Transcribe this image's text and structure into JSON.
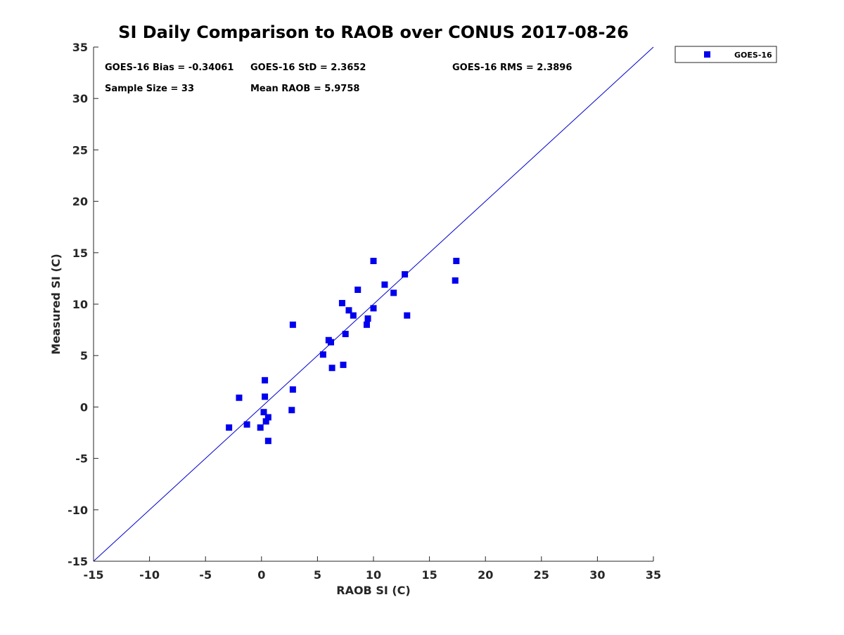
{
  "chart_data": {
    "type": "scatter",
    "title": "SI Daily Comparison to RAOB over CONUS 2017-08-26",
    "xlabel": "RAOB SI (C)",
    "ylabel": "Measured SI (C)",
    "xlim": [
      -15,
      35
    ],
    "ylim": [
      -15,
      35
    ],
    "x_ticks": [
      "-15",
      "-10",
      "-5",
      "0",
      "5",
      "10",
      "15",
      "20",
      "25",
      "30",
      "35"
    ],
    "y_ticks": [
      "-15",
      "-10",
      "-5",
      "0",
      "5",
      "10",
      "15",
      "20",
      "25",
      "30",
      "35"
    ],
    "grid": false,
    "legend_position": "outside top-right",
    "reference_line": {
      "type": "one-to-one",
      "color": "#0000cc"
    },
    "series": [
      {
        "name": "GOES-16",
        "color": "#0000ee",
        "marker": "square",
        "points": [
          [
            -2.9,
            -2.0
          ],
          [
            -2.0,
            0.9
          ],
          [
            -1.3,
            -1.7
          ],
          [
            -0.1,
            -2.0
          ],
          [
            0.2,
            -0.5
          ],
          [
            0.3,
            1.0
          ],
          [
            0.3,
            2.6
          ],
          [
            0.4,
            -1.4
          ],
          [
            0.6,
            -1.0
          ],
          [
            0.6,
            -3.3
          ],
          [
            2.7,
            -0.3
          ],
          [
            2.8,
            1.7
          ],
          [
            2.8,
            8.0
          ],
          [
            5.5,
            5.1
          ],
          [
            6.0,
            6.5
          ],
          [
            6.2,
            6.3
          ],
          [
            6.3,
            3.8
          ],
          [
            7.2,
            10.1
          ],
          [
            7.3,
            4.1
          ],
          [
            7.5,
            7.1
          ],
          [
            7.8,
            9.4
          ],
          [
            8.2,
            8.9
          ],
          [
            8.6,
            11.4
          ],
          [
            9.4,
            8.0
          ],
          [
            9.5,
            8.6
          ],
          [
            10.0,
            9.6
          ],
          [
            10.0,
            14.2
          ],
          [
            11.0,
            11.9
          ],
          [
            11.8,
            11.1
          ],
          [
            12.8,
            12.9
          ],
          [
            13.0,
            8.9
          ],
          [
            17.3,
            12.3
          ],
          [
            17.4,
            14.2
          ]
        ]
      }
    ],
    "stats": {
      "bias": "GOES-16 Bias = -0.34061",
      "std": "GOES-16 StD = 2.3652",
      "rms": "GOES-16 RMS = 2.3896",
      "sample_size": "Sample Size = 33",
      "mean_raob": "Mean RAOB = 5.9758"
    }
  }
}
